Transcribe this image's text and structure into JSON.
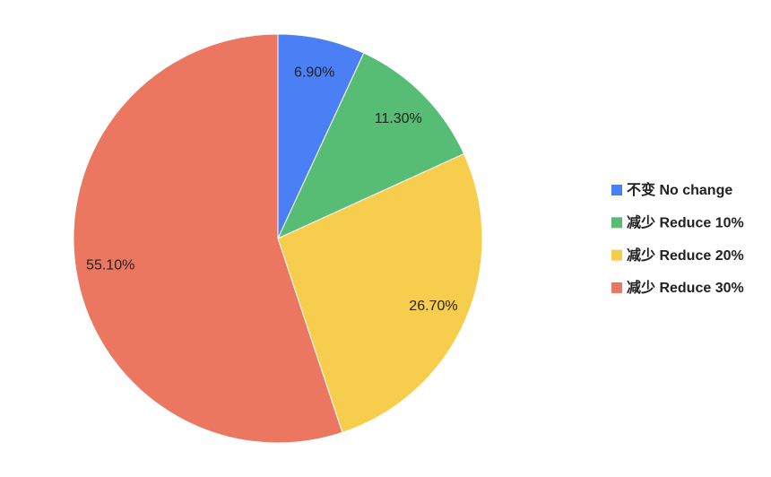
{
  "chart_data": {
    "type": "pie",
    "categories": [
      "不变 No change",
      "减少 Reduce 10%",
      "减少 Reduce 20%",
      "减少 Reduce 30%"
    ],
    "values": [
      6.9,
      11.3,
      26.7,
      55.1
    ],
    "value_labels": [
      "6.90%",
      "11.30%",
      "26.70%",
      "55.10%"
    ],
    "colors": [
      "#4a7ff5",
      "#57bd75",
      "#f7cd4d",
      "#ec7760"
    ],
    "legend": "right"
  }
}
